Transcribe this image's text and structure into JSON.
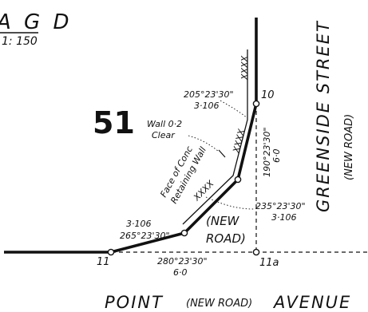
{
  "header": {
    "title_fragment": "A G D",
    "scale_fragment": "1: 150"
  },
  "lot_number": "51",
  "streets": {
    "greenside": "GREENSIDE STREET",
    "greenside_note": "(NEW ROAD)",
    "point_avenue_left": "POINT",
    "point_avenue_note": "(NEW ROAD)",
    "point_avenue_right": "AVENUE"
  },
  "new_road_label": {
    "line1": "(NEW",
    "line2": "ROAD)"
  },
  "wall_labels": {
    "wall_line1": "Wall 0·2",
    "wall_line2": "Clear",
    "face_line1": "Face of Conc",
    "face_line2": "Retaining Wall"
  },
  "hatch_marks": [
    "XXXX",
    "XXXX",
    "XXXX"
  ],
  "stations": {
    "s10": "10",
    "s11": "11",
    "s11a": "11a"
  },
  "bearings": {
    "b1_bearing": "205°23'30\"",
    "b1_distance": "3·106",
    "b2_bearing": "190°23'30\"",
    "b2_distance": "6·0",
    "b3_bearing": "235°23'30\"",
    "b3_distance": "3·106",
    "b4_distance": "3·106",
    "b4_bearing": "265°23'30\"",
    "b5_bearing": "280°23'30\"",
    "b5_distance": "6·0"
  }
}
